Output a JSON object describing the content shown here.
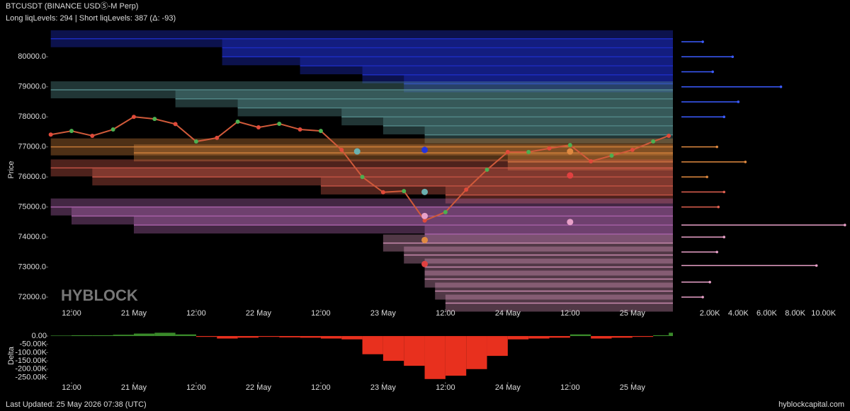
{
  "chart_data": [
    {
      "type": "line",
      "title": "BTCUSDT (BINANCE USDⓈ-M Perp)",
      "subtitle": "Long liqLevels: 294 | Short liqLevels: 387 (Δ: -93)",
      "y_label": "Price",
      "watermark": "HYBLOCK",
      "xlim": [
        "20 May 07:30",
        "25 May 07:48"
      ],
      "ylim": [
        71600,
        80830
      ],
      "xticks": [
        {
          "value": "20 May 12:00",
          "label": "12:00"
        },
        {
          "value": "21 May 00:00",
          "label": "21 May"
        },
        {
          "value": "21 May 12:00",
          "label": "12:00"
        },
        {
          "value": "22 May 00:00",
          "label": "22 May"
        },
        {
          "value": "22 May 12:00",
          "label": "12:00"
        },
        {
          "value": "23 May 00:00",
          "label": "23 May"
        },
        {
          "value": "23 May 12:00",
          "label": "12:00"
        },
        {
          "value": "24 May 00:00",
          "label": "24 May"
        },
        {
          "value": "24 May 12:00",
          "label": "12:00"
        },
        {
          "value": "25 May 00:00",
          "label": "25 May"
        }
      ],
      "yticks": [
        {
          "value": 72000,
          "label": "72000.0"
        },
        {
          "value": 73000,
          "label": "73000.0"
        },
        {
          "value": 74000,
          "label": "74000.0"
        },
        {
          "value": 75000,
          "label": "75000.0"
        },
        {
          "value": 76000,
          "label": "76000.0"
        },
        {
          "value": 77000,
          "label": "77000.0"
        },
        {
          "value": 78000,
          "label": "78000.0"
        },
        {
          "value": 79000,
          "label": "79000.0"
        },
        {
          "value": 80000,
          "label": "80000.0"
        }
      ],
      "levels": [
        {
          "color": "#2233dd",
          "prices": [
            80600,
            80300,
            80000,
            79700,
            79400,
            79100
          ],
          "starts": [
            "20 May 08:00",
            "21 May 17:00",
            "21 May 17:00",
            "22 May 08:00",
            "22 May 20:00",
            "23 May 04:00"
          ]
        },
        {
          "color": "#5f9a9a",
          "prices": [
            78900,
            78600,
            78300,
            78000,
            77700,
            77400
          ],
          "starts": [
            "20 May 08:00",
            "21 May 08:00",
            "21 May 20:00",
            "22 May 16:00",
            "23 May 00:00",
            "23 May 08:00"
          ]
        },
        {
          "color": "#e08a40",
          "prices": [
            77000,
            76800,
            76500
          ],
          "starts": [
            "20 May 08:00",
            "21 May 00:00",
            "24 May 00:00"
          ]
        },
        {
          "color": "#e06050",
          "prices": [
            76300,
            76000,
            75700,
            75400
          ],
          "starts": [
            "20 May 08:00",
            "20 May 16:00",
            "22 May 12:00",
            "23 May 12:00"
          ]
        },
        {
          "color": "#c070c0",
          "prices": [
            75000,
            74700,
            74400,
            74100
          ],
          "starts": [
            "20 May 08:00",
            "20 May 12:00",
            "21 May 00:00",
            "23 May 08:00"
          ]
        },
        {
          "color": "#e8a0c8",
          "prices": [
            73800,
            73400,
            73000,
            72600,
            72200,
            71800
          ],
          "starts": [
            "23 May 00:00",
            "23 May 04:00",
            "23 May 08:00",
            "23 May 08:00",
            "23 May 10:00",
            "23 May 12:00"
          ]
        }
      ],
      "series": [
        {
          "color": "#d05a3a",
          "x": [
            "20 May 08:00",
            "20 May 12:00",
            "20 May 16:00",
            "20 May 20:00",
            "21 May 00:00",
            "21 May 04:00",
            "21 May 08:00",
            "21 May 12:00",
            "21 May 16:00",
            "21 May 20:00",
            "22 May 00:00",
            "22 May 04:00",
            "22 May 08:00",
            "22 May 12:00",
            "22 May 16:00",
            "22 May 20:00",
            "23 May 00:00",
            "23 May 04:00",
            "23 May 08:00",
            "23 May 12:00",
            "23 May 16:00",
            "23 May 20:00",
            "24 May 00:00",
            "24 May 04:00",
            "24 May 08:00",
            "24 May 12:00",
            "24 May 16:00",
            "24 May 20:00",
            "25 May 00:00",
            "25 May 04:00",
            "25 May 07:00"
          ],
          "values": [
            77410,
            77530,
            77370,
            77580,
            78000,
            77930,
            77760,
            77180,
            77300,
            77840,
            77650,
            77770,
            77580,
            77530,
            76900,
            76000,
            75490,
            75530,
            74550,
            74830,
            75580,
            76240,
            76830,
            76830,
            76950,
            77060,
            76520,
            76710,
            76900,
            77180,
            77370
          ]
        }
      ],
      "bubbles": {
        "colors": [
          "#2233dd",
          "#6ab0b0",
          "#e8a0c8",
          "#e08a40",
          "#e04040",
          "#e08a40",
          "#e04040",
          "#e8a0c8",
          "#6ab0b0"
        ],
        "x": [
          "23 May 08:00",
          "23 May 08:00",
          "23 May 08:00",
          "23 May 08:00",
          "23 May 08:00",
          "24 May 12:00",
          "24 May 12:00",
          "24 May 12:00",
          "22 May 19:00"
        ],
        "prices": [
          76900,
          75500,
          74700,
          73900,
          73100,
          76850,
          76050,
          74500,
          76850
        ]
      }
    },
    {
      "type": "hbar",
      "xlim": [
        0,
        11360
      ],
      "ylim": [
        71600,
        80830
      ],
      "xticks": [
        {
          "value": 2000,
          "label": "2.00K"
        },
        {
          "value": 4000,
          "label": "4.00K"
        },
        {
          "value": 6000,
          "label": "6.00K"
        },
        {
          "value": 8000,
          "label": "8.00K"
        },
        {
          "value": 10000,
          "label": "10.00K"
        }
      ],
      "series": [
        {
          "color": "#3b5bff",
          "prices": [
            80500,
            80000,
            79500,
            79000,
            78500,
            78000
          ],
          "values": [
            1500,
            3600,
            2200,
            7000,
            4000,
            3000
          ]
        },
        {
          "color": "#e08a40",
          "prices": [
            77000,
            76500,
            76000
          ],
          "values": [
            2500,
            4500,
            1800
          ]
        },
        {
          "color": "#e06050",
          "prices": [
            75500,
            75000
          ],
          "values": [
            3000,
            2600
          ]
        },
        {
          "color": "#e8a0c8",
          "prices": [
            74400,
            74000,
            73500,
            73050,
            72500,
            72000
          ],
          "values": [
            11500,
            3000,
            2500,
            9500,
            2000,
            1500
          ]
        }
      ]
    },
    {
      "type": "delta",
      "y_label": "Delta",
      "colors": {
        "positive": "#3a8a2a",
        "negative": "#e8301e"
      },
      "xlim": [
        "20 May 07:30",
        "25 May 07:48"
      ],
      "ylim": [
        -278000,
        43000
      ],
      "xticks": [
        {
          "value": "20 May 12:00",
          "label": "12:00"
        },
        {
          "value": "21 May 00:00",
          "label": "21 May"
        },
        {
          "value": "21 May 12:00",
          "label": "12:00"
        },
        {
          "value": "22 May 00:00",
          "label": "22 May"
        },
        {
          "value": "22 May 12:00",
          "label": "12:00"
        },
        {
          "value": "23 May 00:00",
          "label": "23 May"
        },
        {
          "value": "23 May 12:00",
          "label": "12:00"
        },
        {
          "value": "24 May 00:00",
          "label": "24 May"
        },
        {
          "value": "24 May 12:00",
          "label": "12:00"
        },
        {
          "value": "25 May 00:00",
          "label": "25 May"
        }
      ],
      "yticks": [
        {
          "value": 0,
          "label": "0.00"
        },
        {
          "value": -50000,
          "label": "-50.00K"
        },
        {
          "value": -100000,
          "label": "-100.00K"
        },
        {
          "value": -150000,
          "label": "-150.00K"
        },
        {
          "value": -200000,
          "label": "-200.00K"
        },
        {
          "value": -250000,
          "label": "-250.00K"
        }
      ],
      "x": [
        "20 May 08:00",
        "20 May 12:00",
        "20 May 16:00",
        "20 May 20:00",
        "21 May 00:00",
        "21 May 04:00",
        "21 May 08:00",
        "21 May 12:00",
        "21 May 16:00",
        "21 May 20:00",
        "22 May 00:00",
        "22 May 04:00",
        "22 May 08:00",
        "22 May 12:00",
        "22 May 16:00",
        "22 May 20:00",
        "23 May 00:00",
        "23 May 04:00",
        "23 May 08:00",
        "23 May 12:00",
        "23 May 16:00",
        "23 May 20:00",
        "24 May 00:00",
        "24 May 04:00",
        "24 May 08:00",
        "24 May 12:00",
        "24 May 16:00",
        "24 May 20:00",
        "25 May 00:00",
        "25 May 04:00",
        "25 May 07:00"
      ],
      "values": [
        3000,
        5000,
        5000,
        8000,
        15000,
        20000,
        10000,
        -5000,
        -15000,
        -10000,
        -5000,
        -8000,
        -10000,
        -15000,
        -20000,
        -110000,
        -150000,
        -180000,
        -260000,
        -240000,
        -200000,
        -120000,
        -20000,
        -15000,
        -10000,
        10000,
        -15000,
        -10000,
        -5000,
        5000,
        20000
      ]
    }
  ],
  "footer": {
    "updated": "Last Updated: 25 May 2026 07:38 (UTC)",
    "site": "hyblockcapital.com"
  }
}
